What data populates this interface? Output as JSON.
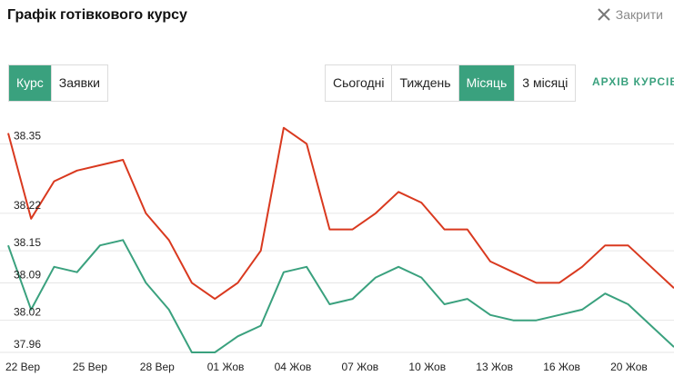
{
  "header": {
    "title": "Графік готівкового курсу",
    "close_label": "Закрити",
    "close_icon": "close-icon"
  },
  "type_tabs": [
    {
      "label": "Курс",
      "active": true
    },
    {
      "label": "Заявки",
      "active": false
    }
  ],
  "period_tabs": [
    {
      "label": "Сьогодні",
      "active": false
    },
    {
      "label": "Тиждень",
      "active": false
    },
    {
      "label": "Місяць",
      "active": true
    },
    {
      "label": "3 місяці",
      "active": false
    }
  ],
  "archive_link": "АРХІВ КУРСІВ",
  "colors": {
    "accent": "#3aa17e",
    "sell_line": "#d9391f",
    "buy_line": "#3aa17e",
    "grid": "#e6e6e6"
  },
  "chart_data": {
    "type": "line",
    "grid": true,
    "ylim": [
      37.96,
      38.41
    ],
    "yticks": [
      "38.35",
      "38.22",
      "38.15",
      "38.09",
      "38.02",
      "37.96"
    ],
    "xticks": [
      "22 Вер",
      "25 Вер",
      "28 Вер",
      "01 Жов",
      "04 Жов",
      "07 Жов",
      "10 Жов",
      "13 Жов",
      "16 Жов",
      "20 Жов"
    ],
    "series": [
      {
        "color": "#d9391f",
        "values": [
          38.37,
          38.21,
          38.28,
          38.3,
          38.31,
          38.32,
          38.22,
          38.17,
          38.09,
          38.06,
          38.09,
          38.15,
          38.38,
          38.35,
          38.19,
          38.19,
          38.22,
          38.26,
          38.24,
          38.19,
          38.19,
          38.13,
          38.11,
          38.09,
          38.09,
          38.12,
          38.16,
          38.16,
          38.12,
          38.08
        ]
      },
      {
        "color": "#3aa17e",
        "values": [
          38.16,
          38.04,
          38.12,
          38.11,
          38.16,
          38.17,
          38.09,
          38.04,
          37.96,
          37.96,
          37.99,
          38.01,
          38.11,
          38.12,
          38.05,
          38.06,
          38.1,
          38.12,
          38.1,
          38.05,
          38.06,
          38.03,
          38.02,
          38.02,
          38.03,
          38.04,
          38.07,
          38.05,
          38.01,
          37.97
        ]
      }
    ]
  }
}
